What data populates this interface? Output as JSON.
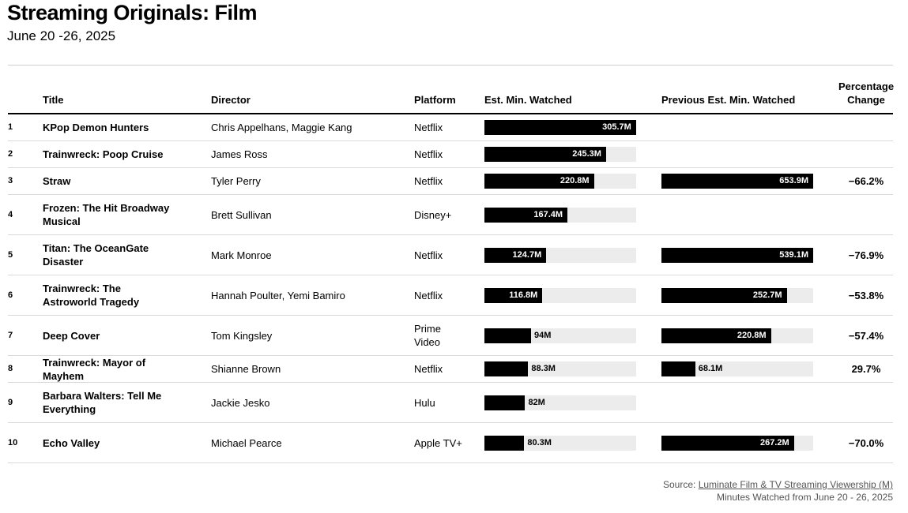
{
  "header": {
    "title": "Streaming Originals: Film",
    "subtitle": "June 20 -26, 2025"
  },
  "columns": {
    "title": "Title",
    "director": "Director",
    "platform": "Platform",
    "est": "Est. Min. Watched",
    "prev": "Previous Est. Min. Watched",
    "pct": "Percentage Change"
  },
  "chart_data": {
    "type": "table",
    "scale_max": 306,
    "unit": "M",
    "rows": [
      {
        "rank": "1",
        "title": "KPop Demon Hunters",
        "director": "Chris Appelhans, Maggie Kang",
        "platform": "Netflix",
        "est": 305.7,
        "est_label": "305.7M",
        "prev": null,
        "prev_label": "",
        "pct": ""
      },
      {
        "rank": "2",
        "title": "Trainwreck: Poop Cruise",
        "director": "James Ross",
        "platform": "Netflix",
        "est": 245.3,
        "est_label": "245.3M",
        "prev": null,
        "prev_label": "",
        "pct": ""
      },
      {
        "rank": "3",
        "title": "Straw",
        "director": "Tyler Perry",
        "platform": "Netflix",
        "est": 220.8,
        "est_label": "220.8M",
        "prev": 653.9,
        "prev_label": "653.9M",
        "pct": "−66.2%"
      },
      {
        "rank": "4",
        "title": "Frozen: The Hit Broadway Musical",
        "director": "Brett Sullivan",
        "platform": "Disney+",
        "est": 167.4,
        "est_label": "167.4M",
        "prev": null,
        "prev_label": "",
        "pct": ""
      },
      {
        "rank": "5",
        "title": "Titan: The OceanGate Disaster",
        "director": "Mark Monroe",
        "platform": "Netflix",
        "est": 124.7,
        "est_label": "124.7M",
        "prev": 539.1,
        "prev_label": "539.1M",
        "pct": "−76.9%"
      },
      {
        "rank": "6",
        "title": "Trainwreck: The Astroworld Tragedy",
        "director": "Hannah Poulter, Yemi Bamiro",
        "platform": "Netflix",
        "est": 116.8,
        "est_label": "116.8M",
        "prev": 252.7,
        "prev_label": "252.7M",
        "pct": "−53.8%"
      },
      {
        "rank": "7",
        "title": "Deep Cover",
        "director": "Tom Kingsley",
        "platform": "Prime Video",
        "est": 94,
        "est_label": "94M",
        "prev": 220.8,
        "prev_label": "220.8M",
        "pct": "−57.4%"
      },
      {
        "rank": "8",
        "title": "Trainwreck: Mayor of Mayhem",
        "director": "Shianne Brown",
        "platform": "Netflix",
        "est": 88.3,
        "est_label": "88.3M",
        "prev": 68.1,
        "prev_label": "68.1M",
        "pct": "29.7%"
      },
      {
        "rank": "9",
        "title": "Barbara Walters: Tell Me Everything",
        "director": "Jackie Jesko",
        "platform": "Hulu",
        "est": 82,
        "est_label": "82M",
        "prev": null,
        "prev_label": "",
        "pct": ""
      },
      {
        "rank": "10",
        "title": "Echo Valley",
        "director": "Michael Pearce",
        "platform": "Apple TV+",
        "est": 80.3,
        "est_label": "80.3M",
        "prev": 267.2,
        "prev_label": "267.2M",
        "pct": "−70.0%"
      }
    ]
  },
  "footer": {
    "source_prefix": "Source: ",
    "source_link": "Luminate Film & TV Streaming Viewership (M)",
    "note": "Minutes Watched from June 20 - 26, 2025"
  },
  "colors": {
    "bar": "#000000",
    "track": "#ececec",
    "rule": "#d9d9d9"
  }
}
